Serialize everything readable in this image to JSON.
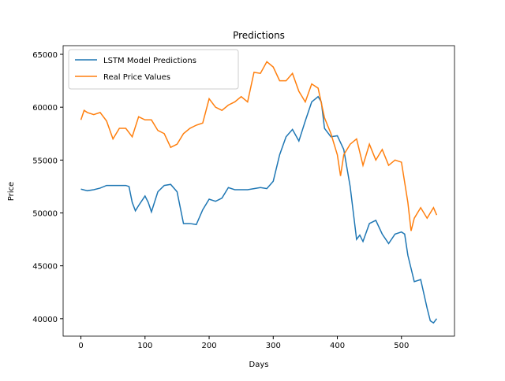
{
  "chart_data": {
    "type": "line",
    "title": "Predictions",
    "xlabel": "Days",
    "ylabel": "Price",
    "xlim": [
      -27.75,
      582.75
    ],
    "ylim": [
      38350,
      65820
    ],
    "xticks": [
      0,
      100,
      200,
      300,
      400,
      500
    ],
    "yticks": [
      40000,
      45000,
      50000,
      55000,
      60000,
      65000
    ],
    "grid": false,
    "legend": "upper left",
    "series": [
      {
        "name": "LSTM Model Predictions",
        "color": "#1f77b4",
        "x": [
          0,
          10,
          20,
          30,
          40,
          50,
          60,
          70,
          75,
          80,
          85,
          90,
          100,
          105,
          110,
          120,
          130,
          140,
          150,
          160,
          170,
          180,
          190,
          200,
          210,
          220,
          230,
          240,
          250,
          260,
          270,
          280,
          290,
          300,
          310,
          320,
          330,
          340,
          350,
          360,
          370,
          375,
          380,
          390,
          400,
          410,
          420,
          430,
          435,
          440,
          450,
          460,
          470,
          480,
          490,
          500,
          505,
          510,
          520,
          530,
          540,
          545,
          550,
          555
        ],
        "values": [
          52250,
          52100,
          52200,
          52350,
          52600,
          52600,
          52600,
          52600,
          52500,
          51000,
          50200,
          50700,
          51600,
          51000,
          50100,
          52000,
          52600,
          52700,
          52000,
          49000,
          49000,
          48900,
          50300,
          51300,
          51100,
          51400,
          52400,
          52200,
          52200,
          52200,
          52300,
          52400,
          52300,
          53000,
          55500,
          57200,
          57900,
          56800,
          58700,
          60500,
          61000,
          60500,
          58000,
          57200,
          57300,
          56000,
          52500,
          47500,
          47900,
          47300,
          49000,
          49300,
          48000,
          47100,
          48000,
          48200,
          48000,
          46000,
          43500,
          43700,
          41000,
          39800,
          39600,
          40000
        ]
      },
      {
        "name": "Real Price Values",
        "color": "#ff7f0e",
        "x": [
          0,
          5,
          10,
          20,
          30,
          40,
          50,
          60,
          70,
          80,
          90,
          100,
          110,
          120,
          130,
          140,
          150,
          160,
          170,
          180,
          190,
          200,
          210,
          220,
          230,
          240,
          250,
          260,
          270,
          280,
          290,
          300,
          310,
          320,
          330,
          340,
          350,
          360,
          370,
          380,
          390,
          400,
          405,
          410,
          420,
          430,
          440,
          450,
          460,
          470,
          480,
          490,
          500,
          510,
          515,
          520,
          530,
          540,
          550,
          555
        ],
        "values": [
          58800,
          59700,
          59500,
          59300,
          59500,
          58700,
          57000,
          58000,
          58000,
          57200,
          59100,
          58800,
          58800,
          57800,
          57500,
          56200,
          56500,
          57500,
          58000,
          58300,
          58500,
          60800,
          60000,
          59700,
          60200,
          60500,
          61000,
          60500,
          63300,
          63200,
          64300,
          63800,
          62500,
          62500,
          63200,
          61500,
          60500,
          62200,
          61800,
          59000,
          57500,
          55500,
          53500,
          55500,
          56500,
          57000,
          54500,
          56500,
          55000,
          56000,
          54500,
          55000,
          54800,
          51000,
          48300,
          49500,
          50500,
          49500,
          50500,
          49800
        ]
      }
    ]
  }
}
